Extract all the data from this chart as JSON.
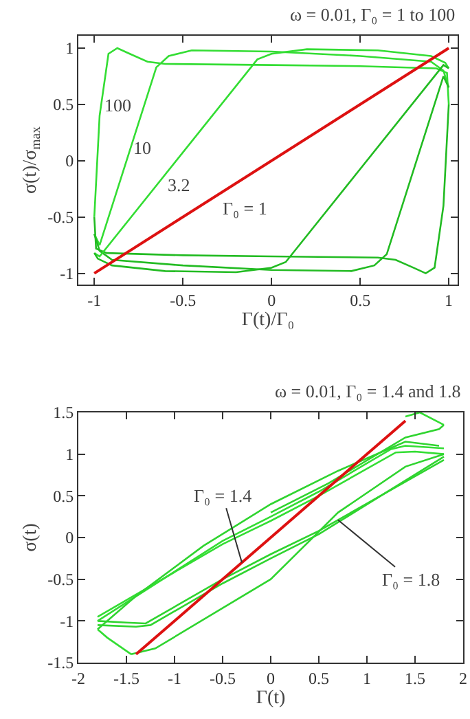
{
  "chart_data": [
    {
      "type": "line",
      "title": "ω = 0.01, Γ₀ = 1 to 100",
      "xlabel": "Γ(t)/Γ₀",
      "ylabel": "σ(t)/σ$_{max}$",
      "xlim": [
        -1.09,
        1.05
      ],
      "ylim": [
        -1.1,
        1.11
      ],
      "xticks": [
        -1,
        -0.5,
        0,
        0.5,
        1
      ],
      "yticks": [
        -1,
        -0.5,
        0,
        0.5,
        1
      ],
      "grid": false,
      "marker": "none",
      "line_style": "solid",
      "series": [
        {
          "color": "#33dd33",
          "x": [
            -1,
            -0.97,
            -0.92,
            -0.87,
            -0.8,
            -0.7,
            -0.6,
            0,
            0.5,
            0.93,
            0.99,
            1
          ],
          "values": [
            -0.5,
            0.4,
            0.95,
            1,
            0.95,
            0.88,
            0.86,
            0.85,
            0.84,
            0.82,
            0.78,
            0.5
          ]
        },
        {
          "color": "#22bb22",
          "x": [
            -1,
            -0.99,
            -0.93,
            -0.5,
            0,
            0.6,
            0.7,
            0.8,
            0.87,
            0.92,
            0.97,
            1
          ],
          "values": [
            -0.5,
            -0.78,
            -0.82,
            -0.84,
            -0.85,
            -0.86,
            -0.88,
            -0.95,
            -1,
            -0.95,
            -0.4,
            0.5
          ]
        },
        {
          "color": "#33dd33",
          "x": [
            -1,
            -0.97,
            -0.65,
            -0.58,
            -0.45,
            0,
            0.5,
            0.9,
            0.97,
            1
          ],
          "values": [
            -0.65,
            -0.75,
            0.83,
            0.93,
            0.98,
            0.97,
            0.93,
            0.88,
            0.8,
            0.65
          ]
        },
        {
          "color": "#22bb22",
          "x": [
            -1,
            -0.97,
            -0.9,
            -0.5,
            0,
            0.45,
            0.58,
            0.65,
            0.97,
            1
          ],
          "values": [
            -0.65,
            -0.8,
            -0.88,
            -0.93,
            -0.97,
            -0.98,
            -0.93,
            -0.83,
            0.75,
            0.65
          ]
        },
        {
          "color": "#33dd33",
          "x": [
            -1,
            -0.97,
            -0.08,
            0,
            0.2,
            0.6,
            0.9,
            0.98,
            1
          ],
          "values": [
            -0.82,
            -0.85,
            0.9,
            0.95,
            0.99,
            0.98,
            0.93,
            0.87,
            0.82
          ]
        },
        {
          "color": "#22bb22",
          "x": [
            -1,
            -0.98,
            -0.9,
            -0.6,
            -0.2,
            0,
            0.08,
            0.97,
            1
          ],
          "values": [
            -0.82,
            -0.87,
            -0.93,
            -0.98,
            -0.99,
            -0.95,
            -0.9,
            0.85,
            0.82
          ]
        },
        {
          "color": "#dd1111",
          "x": [
            -1,
            1
          ],
          "values": [
            -1,
            1
          ]
        }
      ],
      "annotations": [
        "100",
        "10",
        "3.2",
        "Γ₀ = 1"
      ]
    },
    {
      "type": "line",
      "title": "ω = 0.01, Γ₀ = 1.4 and 1.8",
      "xlabel": "Γ(t)",
      "ylabel": "σ(t)",
      "xlim": [
        -2,
        2
      ],
      "ylim": [
        -1.5,
        1.5
      ],
      "xticks": [
        -2,
        -1.5,
        -1,
        -0.5,
        0,
        0.5,
        1,
        1.5,
        2
      ],
      "yticks": [
        -1.5,
        -1,
        -0.5,
        0,
        0.5,
        1,
        1.5
      ],
      "grid": false,
      "marker": "none",
      "line_style": "solid",
      "series": [
        {
          "color": "#33dd33",
          "x": [
            -1.8,
            -0.5,
            0,
            0.5,
            1.3,
            1.5,
            1.8
          ],
          "values": [
            -0.95,
            -0.08,
            0.2,
            0.5,
            1.02,
            1.03,
            1.0
          ]
        },
        {
          "color": "#2fd42f",
          "x": [
            -1.8,
            -1.5,
            -1.3,
            -0.5,
            0,
            0.5,
            1.8
          ],
          "values": [
            -1,
            -1.02,
            -1.03,
            -0.5,
            -0.2,
            0.08,
            0.93
          ]
        },
        {
          "color": "#33dd33",
          "x": [
            -1.8,
            -0.5,
            0,
            0.5,
            1.25,
            1.4,
            1.8
          ],
          "values": [
            -1.0,
            -0.04,
            0.25,
            0.55,
            1.06,
            1.1,
            1.07
          ]
        },
        {
          "color": "#2fd42f",
          "x": [
            -1.8,
            -1.4,
            -1.25,
            -0.5,
            0,
            0.5,
            1.8
          ],
          "values": [
            -1.05,
            -1.07,
            -1.05,
            -0.55,
            -0.25,
            0.04,
            0.97
          ]
        },
        {
          "color": "#2fd42f",
          "x": [
            -1.45,
            -1.2,
            0,
            0.7,
            1.4,
            1.8
          ],
          "values": [
            -1.4,
            -1.33,
            -0.5,
            0.3,
            0.85,
            1.0
          ]
        },
        {
          "color": "#2fd42f",
          "x": [
            -1.8,
            -1.4,
            -0.7,
            0,
            0.7,
            1.4,
            1.75
          ],
          "values": [
            -1.1,
            -0.7,
            -0.1,
            0.4,
            0.8,
            1.15,
            1.1
          ]
        },
        {
          "color": "#33dd33",
          "x": [
            -1.8,
            -1.7,
            -1.45
          ],
          "values": [
            -1.1,
            -1.2,
            -1.4
          ]
        },
        {
          "color": "#33dd33",
          "x": [
            1.4,
            1.55,
            1.8
          ],
          "values": [
            1.45,
            1.5,
            1.35
          ]
        },
        {
          "color": "#2fd42f",
          "x": [
            0,
            0.6,
            1.4,
            1.75,
            1.8
          ],
          "values": [
            0.3,
            0.65,
            1.2,
            1.3,
            1.35
          ]
        },
        {
          "color": "#dd1111",
          "x": [
            -1.4,
            1.4
          ],
          "values": [
            -1.4,
            1.4
          ]
        }
      ],
      "annotations": [
        {
          "text": "Γ₀ = 1.4",
          "x": -0.3,
          "y": -0.3
        },
        {
          "text": "Γ₀ = 1.8",
          "x": 0.7,
          "y": 0.21
        }
      ]
    }
  ]
}
